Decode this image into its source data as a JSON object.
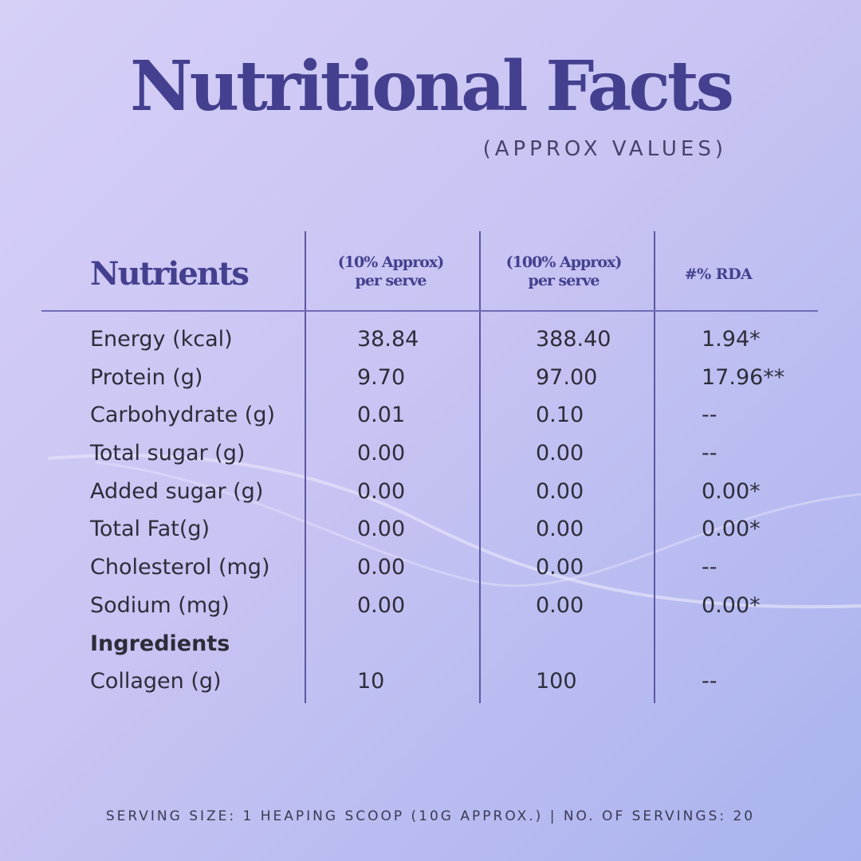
{
  "title": "Nutritional Facts",
  "subtitle": "(APPROX VALUES)",
  "table": {
    "headers": {
      "nutrients": "Nutrients",
      "col1_line1": "(10% Approx)",
      "col1_line2": "per serve",
      "col2_line1": "(100% Approx)",
      "col2_line2": "per serve",
      "rda": "#% RDA"
    },
    "rows": [
      {
        "name": "Energy (kcal)",
        "per_serve": "38.84",
        "per_100": "388.40",
        "rda": "1.94*"
      },
      {
        "name": "Protein (g)",
        "per_serve": "9.70",
        "per_100": "97.00",
        "rda": "17.96**"
      },
      {
        "name": "Carbohydrate (g)",
        "per_serve": "0.01",
        "per_100": "0.10",
        "rda": "--"
      },
      {
        "name": "Total sugar (g)",
        "per_serve": "0.00",
        "per_100": "0.00",
        "rda": "--"
      },
      {
        "name": "Added sugar (g)",
        "per_serve": "0.00",
        "per_100": "0.00",
        "rda": "0.00*"
      },
      {
        "name": "Total Fat(g)",
        "per_serve": "0.00",
        "per_100": "0.00",
        "rda": "0.00*"
      },
      {
        "name": "Cholesterol (mg)",
        "per_serve": "0.00",
        "per_100": "0.00",
        "rda": "--"
      },
      {
        "name": "Sodium (mg)",
        "per_serve": "0.00",
        "per_100": "0.00",
        "rda": "0.00*"
      }
    ],
    "ingredients_heading": "Ingredients",
    "ingredients": [
      {
        "name": "Collagen (g)",
        "per_serve": "10",
        "per_100": "100",
        "rda": "--"
      }
    ]
  },
  "footer": "SERVING SIZE: 1 HEAPING SCOOP (10G APPROX.) | NO. OF SERVINGS: 20",
  "colors": {
    "title": "#44408f",
    "text": "#2d2d3a",
    "lines": "#5c57a2",
    "background_start": "#d6d0f7",
    "background_end": "#a9b3ee"
  }
}
